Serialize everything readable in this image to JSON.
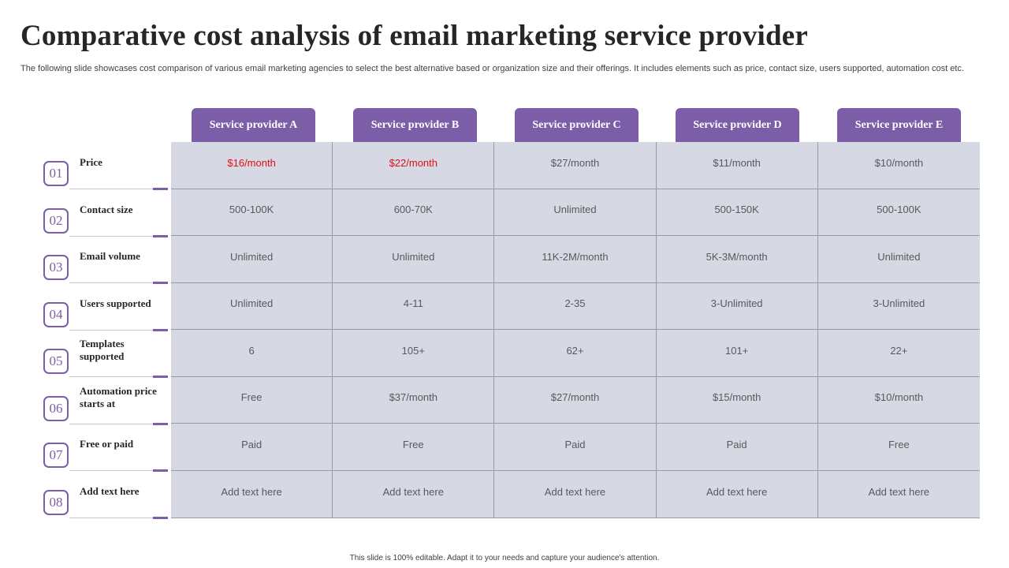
{
  "title": "Comparative cost analysis of email marketing service provider",
  "subtitle": "The following slide showcases cost comparison of various email marketing agencies to select the best alternative based or organization size and their offerings. It includes elements such as price, contact size, users supported, automation cost etc.",
  "providers": [
    "Service provider A",
    "Service provider B",
    "Service provider C",
    "Service provider D",
    "Service provider E"
  ],
  "rows": [
    {
      "num": "01",
      "label": "Price",
      "values": [
        "$16/month",
        "$22/month",
        "$27/month",
        "$11/month",
        "$10/month"
      ]
    },
    {
      "num": "02",
      "label": "Contact size",
      "values": [
        "500-100K",
        "600-70K",
        "Unlimited",
        "500-150K",
        "500-100K"
      ]
    },
    {
      "num": "03",
      "label": "Email volume",
      "values": [
        "Unlimited",
        "Unlimited",
        "11K-2M/month",
        "5K-3M/month",
        "Unlimited"
      ]
    },
    {
      "num": "04",
      "label": "Users supported",
      "values": [
        "Unlimited",
        "4-11",
        "2-35",
        "3-Unlimited",
        "3-Unlimited"
      ]
    },
    {
      "num": "05",
      "label": "Templates supported",
      "values": [
        "6",
        "105+",
        "62+",
        "101+",
        "22+"
      ]
    },
    {
      "num": "06",
      "label": "Automation price starts at",
      "values": [
        "Free",
        "$37/month",
        "$27/month",
        "$15/month",
        "$10/month"
      ]
    },
    {
      "num": "07",
      "label": "Free or paid",
      "values": [
        "Paid",
        "Free",
        "Paid",
        "Paid",
        "Free"
      ]
    },
    {
      "num": "08",
      "label": "Add text here",
      "values": [
        "Add text here",
        "Add text here",
        "Add text here",
        "Add text here",
        "Add text here"
      ]
    }
  ],
  "footer": "This slide is 100% editable. Adapt it to your needs and capture your audience's attention.",
  "colors": {
    "accent": "#7b5ea7",
    "highlight": "#e01010",
    "table_bg": "#d6d9e3"
  }
}
